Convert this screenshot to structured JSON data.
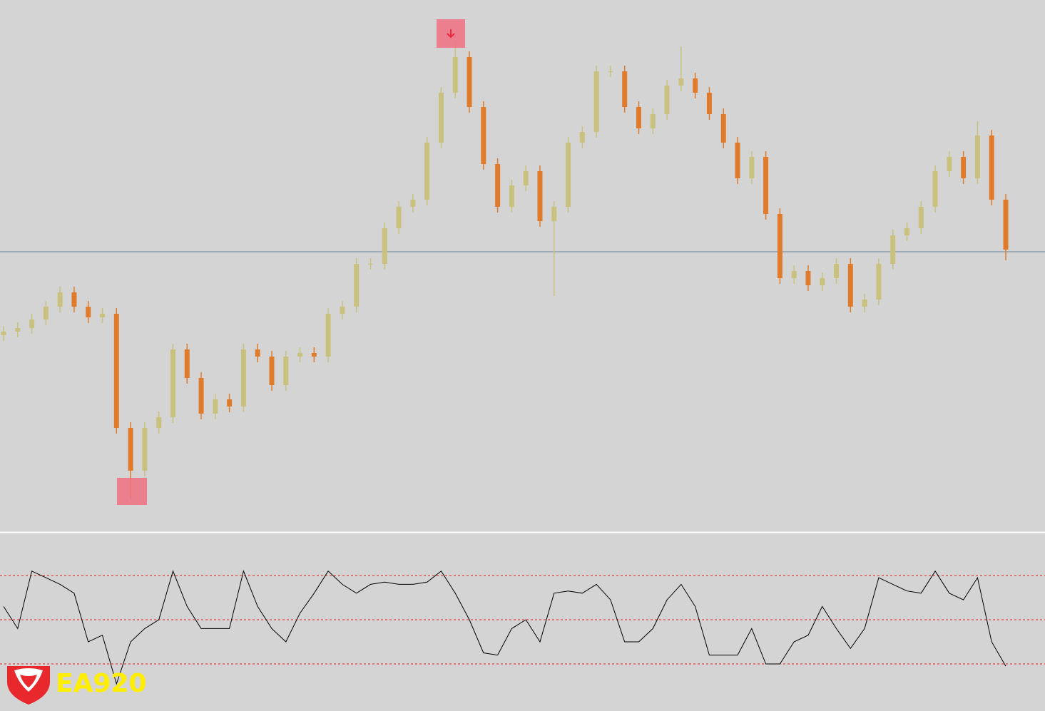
{
  "chart_data": [
    {
      "type": "candlestick",
      "open": [
        275,
        280,
        285,
        297,
        315,
        335,
        315,
        300,
        305,
        145,
        85,
        145,
        160,
        255,
        215,
        165,
        185,
        175,
        255,
        245,
        205,
        245,
        250,
        245,
        305,
        315,
        375,
        375,
        425,
        455,
        465,
        545,
        615,
        665,
        595,
        515,
        455,
        485,
        505,
        435,
        455,
        545,
        560,
        645,
        645,
        595,
        565,
        585,
        625,
        635,
        615,
        585,
        545,
        495,
        525,
        445,
        355,
        365,
        345,
        355,
        375,
        315,
        325,
        375,
        415,
        425,
        455,
        505,
        525,
        495,
        555,
        465
      ],
      "high": [
        288,
        293,
        305,
        323,
        343,
        343,
        323,
        313,
        313,
        153,
        153,
        168,
        263,
        263,
        223,
        193,
        193,
        263,
        263,
        253,
        253,
        258,
        258,
        313,
        323,
        383,
        383,
        433,
        463,
        473,
        553,
        623,
        685,
        673,
        603,
        523,
        493,
        513,
        513,
        463,
        553,
        568,
        653,
        653,
        653,
        603,
        593,
        633,
        680,
        643,
        623,
        593,
        553,
        533,
        533,
        453,
        373,
        373,
        363,
        383,
        383,
        333,
        383,
        423,
        433,
        463,
        513,
        533,
        533,
        575,
        563,
        473
      ],
      "low": [
        267,
        272,
        277,
        289,
        307,
        307,
        292,
        292,
        137,
        45,
        77,
        137,
        152,
        207,
        157,
        157,
        167,
        167,
        237,
        197,
        197,
        237,
        237,
        237,
        297,
        307,
        367,
        367,
        417,
        447,
        457,
        537,
        607,
        587,
        507,
        447,
        447,
        477,
        427,
        330,
        447,
        537,
        552,
        637,
        587,
        557,
        557,
        577,
        617,
        607,
        577,
        537,
        487,
        487,
        437,
        347,
        347,
        337,
        337,
        347,
        307,
        307,
        317,
        367,
        407,
        417,
        447,
        497,
        487,
        487,
        457,
        380
      ],
      "close": [
        280,
        285,
        297,
        315,
        335,
        315,
        300,
        305,
        145,
        85,
        145,
        160,
        255,
        215,
        165,
        185,
        175,
        255,
        245,
        205,
        245,
        250,
        245,
        305,
        315,
        375,
        375,
        425,
        455,
        465,
        545,
        615,
        665,
        595,
        515,
        455,
        485,
        505,
        435,
        455,
        545,
        560,
        645,
        645,
        595,
        565,
        585,
        625,
        635,
        615,
        585,
        545,
        495,
        525,
        445,
        355,
        365,
        345,
        355,
        375,
        315,
        325,
        375,
        415,
        425,
        455,
        505,
        525,
        495,
        555,
        465,
        395
      ],
      "ylim": [
        0,
        745
      ],
      "hline": 392,
      "up_color": "#c9c27f",
      "down_color": "#e07b2c"
    },
    {
      "type": "line",
      "values": [
        56,
        46,
        72,
        69,
        66,
        62,
        40,
        43,
        21,
        40,
        46,
        50,
        72,
        56,
        46,
        46,
        46,
        72,
        56,
        46,
        40,
        53,
        62,
        72,
        66,
        62,
        66,
        67,
        66,
        66,
        67,
        72,
        62,
        50,
        35,
        34,
        46,
        50,
        40,
        62,
        63,
        62,
        66,
        59,
        40,
        40,
        46,
        59,
        66,
        56,
        34,
        34,
        34,
        46,
        30,
        30,
        40,
        43,
        56,
        46,
        37,
        46,
        69,
        66,
        63,
        62,
        72,
        62,
        59,
        69,
        40,
        29
      ],
      "ylim": [
        10,
        90
      ],
      "levels": [
        30,
        50,
        70
      ],
      "color": "#000000",
      "level_color": "#e02020"
    }
  ],
  "logo": {
    "text": "EA920"
  }
}
